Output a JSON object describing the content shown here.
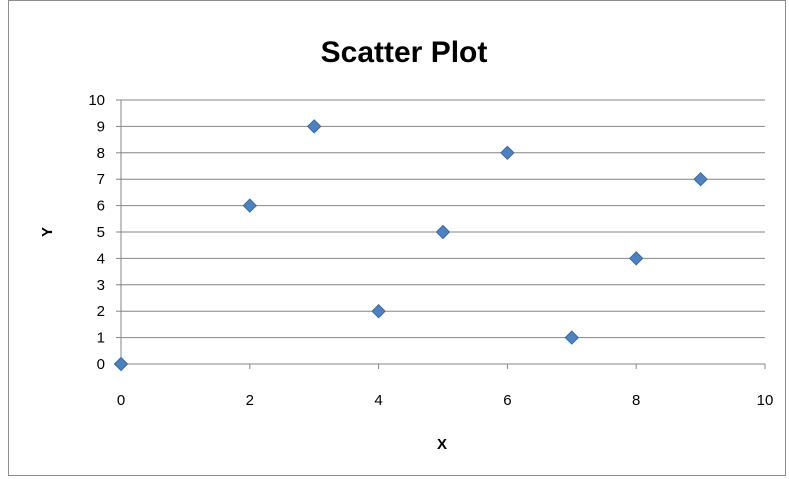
{
  "chart_data": {
    "type": "scatter",
    "title": "Scatter Plot",
    "xlabel": "X",
    "ylabel": "Y",
    "xlim": [
      0,
      10
    ],
    "ylim": [
      0,
      10
    ],
    "x_ticks": [
      "0",
      "2",
      "4",
      "6",
      "8",
      "10"
    ],
    "y_ticks": [
      "0",
      "1",
      "2",
      "3",
      "4",
      "5",
      "6",
      "7",
      "8",
      "9",
      "10"
    ],
    "grid": "horizontal",
    "marker": "diamond",
    "marker_color": "#4F81BD",
    "marker_edge_color": "#3A6A9E",
    "gridline_color": "#868686",
    "series": [
      {
        "x": [
          0,
          2,
          3,
          4,
          5,
          6,
          7,
          8,
          9
        ],
        "y": [
          0,
          6,
          9,
          2,
          5,
          8,
          1,
          4,
          7
        ]
      }
    ]
  }
}
